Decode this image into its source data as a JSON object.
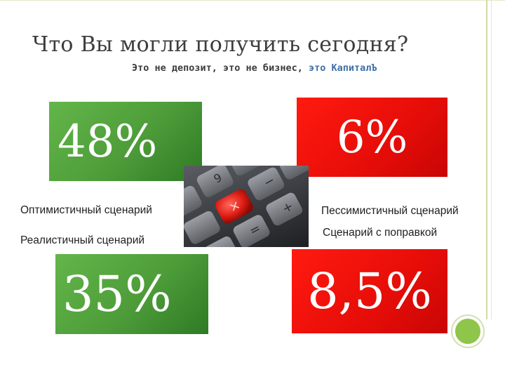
{
  "title": "Что Вы могли получить сегодня?",
  "subtitle": {
    "text": "Это не депозит, это не бизнес, ",
    "brand": "это КапиталЪ"
  },
  "scenarios": {
    "optimistic": {
      "value": "48%",
      "label": "Оптимистичный сценарий",
      "color": "#4d9c39"
    },
    "pessimistic": {
      "value": "6%",
      "label": "Пессимистичный сценарий",
      "color": "#e60d08"
    },
    "realistic": {
      "value": "35%",
      "label": "Реалистичный сценарий",
      "color": "#4d9c39"
    },
    "adjusted": {
      "value": "8,5%",
      "label": "Сценарий с поправкой",
      "color": "#e60d08"
    }
  },
  "image": {
    "icon": "calculator-keys-image"
  },
  "colors": {
    "accent": "#8fc54a",
    "brand_text": "#3d6fa8"
  }
}
